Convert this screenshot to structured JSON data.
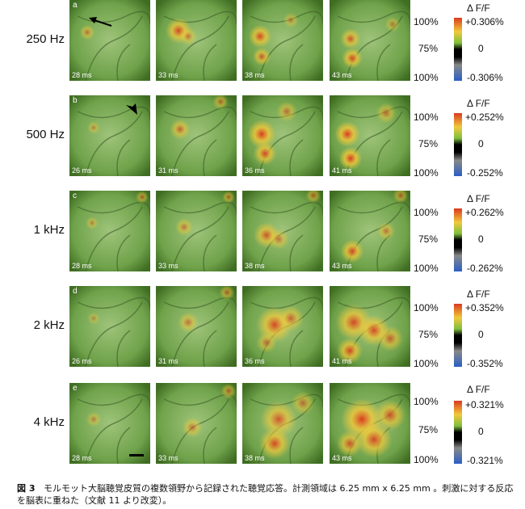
{
  "rows": [
    {
      "freq": "250 Hz",
      "letter": "a",
      "times": [
        "28 ms",
        "33 ms",
        "38 ms",
        "43 ms"
      ],
      "scale_top": "100%",
      "scale_mid": "75%",
      "scale_bot": "100%",
      "dff_title": "Δ F/F",
      "c_top": "+0.306%",
      "c_mid": "0",
      "c_bot": "-0.306%"
    },
    {
      "freq": "500 Hz",
      "letter": "b",
      "times": [
        "26 ms",
        "31 ms",
        "36 ms",
        "41 ms"
      ],
      "scale_top": "100%",
      "scale_mid": "75%",
      "scale_bot": "100%",
      "dff_title": "Δ F/F",
      "c_top": "+0.252%",
      "c_mid": "0",
      "c_bot": "-0.252%"
    },
    {
      "freq": "1 kHz",
      "letter": "c",
      "times": [
        "28 ms",
        "33 ms",
        "38 ms",
        "43 ms"
      ],
      "scale_top": "100%",
      "scale_mid": "75%",
      "scale_bot": "100%",
      "dff_title": "Δ F/F",
      "c_top": "+0.262%",
      "c_mid": "0",
      "c_bot": "-0.262%"
    },
    {
      "freq": "2 kHz",
      "letter": "d",
      "times": [
        "26 ms",
        "31 ms",
        "36 ms",
        "41 ms"
      ],
      "scale_top": "100%",
      "scale_mid": "75%",
      "scale_bot": "100%",
      "dff_title": "Δ F/F",
      "c_top": "+0.352%",
      "c_mid": "0",
      "c_bot": "-0.352%"
    },
    {
      "freq": "4 kHz",
      "letter": "e",
      "times": [
        "28 ms",
        "33 ms",
        "38 ms",
        "43 ms"
      ],
      "scale_top": "100%",
      "scale_mid": "75%",
      "scale_bot": "100%",
      "dff_title": "Δ F/F",
      "c_top": "+0.321%",
      "c_mid": "0",
      "c_bot": "-0.321%"
    }
  ],
  "caption": {
    "fig_label": "図 3",
    "text": "モルモット大脳聴覚皮質の複数領野から記録された聴覚応答。計測領域は 6.25 mm x 6.25 mm 。刺激に対する反応を脳表に重ねた（文献 11 より改変）。"
  },
  "colors": {
    "tissue_green": "#55892f",
    "hot_red": "#d93a1f",
    "hot_yellow": "#f1c93a",
    "cold_blue": "#2a5fc4"
  }
}
